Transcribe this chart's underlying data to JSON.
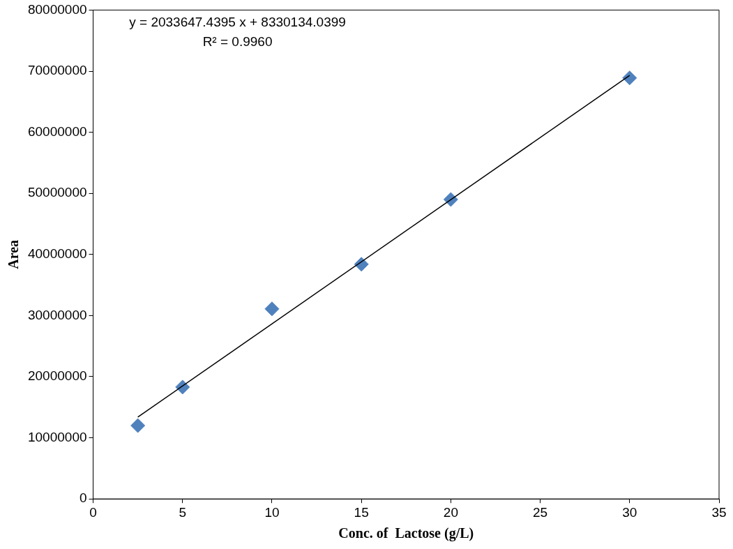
{
  "chart_data": {
    "type": "scatter",
    "xlabel": "Conc. of  Lactose (g/L)",
    "ylabel": "Area",
    "x": [
      2.5,
      5,
      10,
      15,
      20,
      30
    ],
    "series": [
      {
        "color": "#4f81bd",
        "marker": "diamond",
        "values": [
          12000000,
          18300000,
          31100000,
          38400000,
          49000000,
          68900000
        ]
      },
      {
        "type": "line",
        "marker": "none",
        "color": "#000000",
        "x": [
          2.5,
          30
        ],
        "values": [
          13400000,
          69300000
        ]
      }
    ],
    "line_style": "solid",
    "grid": false,
    "xlim": [
      0,
      35
    ],
    "xticks": [
      0,
      5,
      10,
      15,
      20,
      25,
      30,
      35
    ],
    "ylim": [
      0,
      80000000
    ],
    "yticks": [
      0,
      10000000,
      20000000,
      30000000,
      40000000,
      50000000,
      60000000,
      70000000,
      80000000
    ],
    "annotations": [
      "y = 2033647.4395 x + 8330134.0399",
      "R² = 0.9960"
    ]
  }
}
